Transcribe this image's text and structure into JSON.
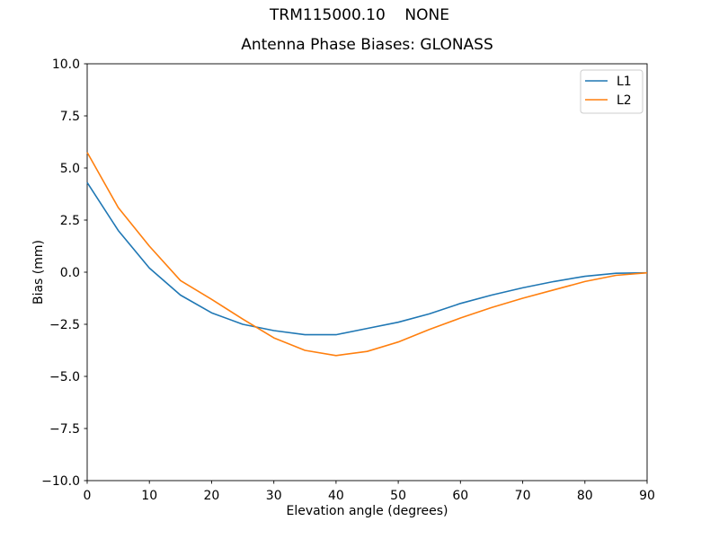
{
  "window": {
    "suptitle": "TRM115000.10    NONE"
  },
  "chart_data": {
    "type": "line",
    "title": "Antenna Phase Biases: GLONASS",
    "xlabel": "Elevation angle (degrees)",
    "ylabel": "Bias (mm)",
    "xlim": [
      0,
      90
    ],
    "ylim": [
      -10.0,
      10.0
    ],
    "grid": false,
    "background": "#ffffff",
    "axes_color": "#000000",
    "xticks": [
      0,
      10,
      20,
      30,
      40,
      50,
      60,
      70,
      80,
      90
    ],
    "xtick_labels": [
      "0",
      "10",
      "20",
      "30",
      "40",
      "50",
      "60",
      "70",
      "80",
      "90"
    ],
    "yticks": [
      -10.0,
      -7.5,
      -5.0,
      -2.5,
      0.0,
      2.5,
      5.0,
      7.5,
      10.0
    ],
    "ytick_labels": [
      "−10.0",
      "−7.5",
      "−5.0",
      "−2.5",
      "0.0",
      "2.5",
      "5.0",
      "7.5",
      "10.0"
    ],
    "legend": {
      "position": "upper right",
      "edge_color": "#cccccc",
      "entries": [
        "L1",
        "L2"
      ]
    },
    "x": [
      0,
      5,
      10,
      15,
      20,
      25,
      30,
      35,
      40,
      45,
      50,
      55,
      60,
      65,
      70,
      75,
      80,
      85,
      90
    ],
    "series": [
      {
        "name": "L1",
        "color": "#1f77b4",
        "values": [
          4.3,
          2.0,
          0.2,
          -1.1,
          -1.95,
          -2.5,
          -2.8,
          -3.0,
          -3.0,
          -2.7,
          -2.4,
          -2.0,
          -1.5,
          -1.1,
          -0.75,
          -0.45,
          -0.2,
          -0.05,
          -0.03
        ]
      },
      {
        "name": "L2",
        "color": "#ff7f0e",
        "values": [
          5.75,
          3.1,
          1.25,
          -0.4,
          -1.3,
          -2.25,
          -3.15,
          -3.75,
          -4.0,
          -3.8,
          -3.35,
          -2.75,
          -2.2,
          -1.7,
          -1.25,
          -0.85,
          -0.45,
          -0.15,
          -0.03
        ]
      }
    ]
  }
}
